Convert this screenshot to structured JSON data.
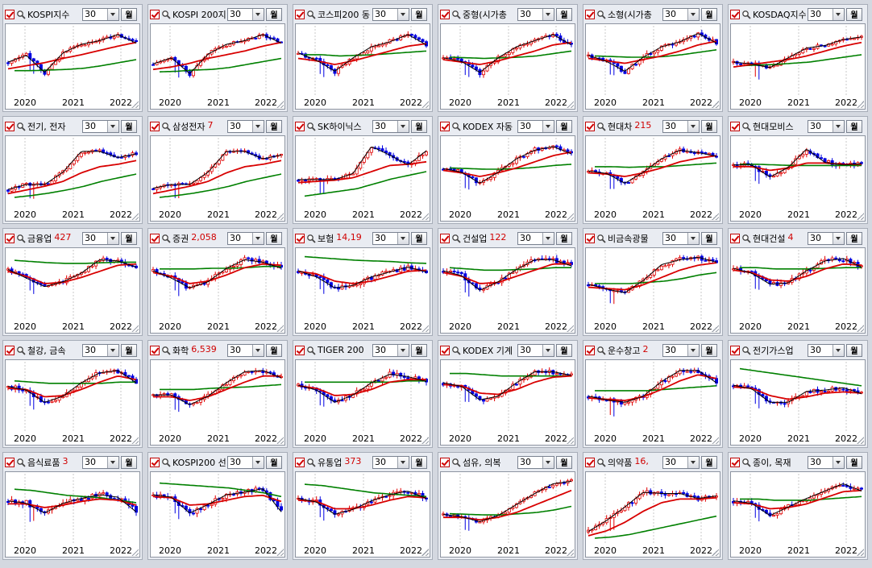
{
  "panels": [
    {
      "name": "KOSPI지수",
      "value": "",
      "period": "30",
      "unit": "월",
      "trend": [
        55,
        42,
        72,
        38,
        26,
        18,
        10,
        22
      ],
      "ma20": [
        65,
        60,
        55,
        48,
        42,
        35,
        28,
        22
      ],
      "ma60": [
        68,
        68,
        67,
        66,
        64,
        60,
        55,
        50
      ],
      "color_order": "rg",
      "volat": 0.6
    },
    {
      "name": "KOSPI 200지",
      "value": "",
      "period": "30",
      "unit": "월",
      "trend": [
        58,
        46,
        74,
        40,
        26,
        18,
        10,
        22
      ],
      "ma20": [
        66,
        62,
        56,
        48,
        42,
        36,
        28,
        22
      ],
      "ma60": [
        70,
        69,
        67,
        66,
        63,
        58,
        53,
        48
      ],
      "color_order": "rg",
      "volat": 0.6
    },
    {
      "name": "코스피200 동",
      "value": "",
      "period": "30",
      "unit": "월",
      "trend": [
        40,
        50,
        70,
        46,
        30,
        20,
        10,
        25
      ],
      "ma20": [
        48,
        52,
        58,
        52,
        44,
        36,
        28,
        24
      ],
      "ma60": [
        42,
        42,
        44,
        43,
        42,
        40,
        38,
        36
      ],
      "color_order": "rg",
      "volat": 0.7
    },
    {
      "name": "중형(시가총",
      "value": "",
      "period": "30",
      "unit": "월",
      "trend": [
        48,
        52,
        72,
        46,
        30,
        18,
        10,
        25
      ],
      "ma20": [
        50,
        54,
        58,
        52,
        44,
        36,
        26,
        22
      ],
      "ma60": [
        46,
        47,
        48,
        47,
        46,
        44,
        40,
        36
      ],
      "color_order": "rg",
      "volat": 0.7
    },
    {
      "name": "소형(시가총",
      "value": "",
      "period": "30",
      "unit": "월",
      "trend": [
        44,
        52,
        70,
        45,
        30,
        20,
        8,
        22
      ],
      "ma20": [
        48,
        52,
        56,
        50,
        44,
        36,
        26,
        20
      ],
      "ma60": [
        44,
        45,
        46,
        46,
        45,
        42,
        38,
        34
      ],
      "color_order": "rg",
      "volat": 0.7
    },
    {
      "name": "KOSDAQ지수",
      "value": "",
      "period": "30",
      "unit": "월",
      "trend": [
        55,
        56,
        64,
        46,
        32,
        26,
        18,
        12
      ],
      "ma20": [
        62,
        58,
        54,
        50,
        44,
        36,
        28,
        22
      ],
      "ma60": [
        60,
        59,
        58,
        56,
        54,
        50,
        46,
        42
      ],
      "color_order": "rg",
      "volat": 0.6
    },
    {
      "name": "전기, 전자",
      "value": "",
      "period": "30",
      "unit": "월",
      "trend": [
        80,
        70,
        72,
        50,
        18,
        16,
        28,
        20
      ],
      "ma20": [
        86,
        80,
        74,
        66,
        52,
        42,
        38,
        32
      ],
      "ma60": [
        92,
        89,
        85,
        80,
        74,
        66,
        60,
        54
      ],
      "color_order": "rg",
      "volat": 0.6
    },
    {
      "name": "삼성전자",
      "value": "7",
      "period": "30",
      "unit": "월",
      "trend": [
        78,
        70,
        72,
        50,
        18,
        16,
        30,
        22
      ],
      "ma20": [
        86,
        80,
        74,
        66,
        52,
        42,
        38,
        32
      ],
      "ma60": [
        92,
        89,
        85,
        80,
        74,
        66,
        60,
        54
      ],
      "color_order": "rg",
      "volat": 0.6
    },
    {
      "name": "SK하이닉스",
      "value": "",
      "period": "30",
      "unit": "월",
      "trend": [
        64,
        62,
        64,
        52,
        10,
        22,
        40,
        15
      ],
      "ma20": [
        68,
        66,
        64,
        60,
        50,
        40,
        38,
        34
      ],
      "ma60": [
        90,
        86,
        82,
        78,
        70,
        62,
        56,
        50
      ],
      "color_order": "rg",
      "volat": 0.8
    },
    {
      "name": "KODEX 자동",
      "value": "",
      "period": "30",
      "unit": "월",
      "trend": [
        46,
        50,
        70,
        50,
        30,
        14,
        10,
        20
      ],
      "ma20": [
        48,
        52,
        58,
        52,
        44,
        34,
        24,
        18
      ],
      "ma60": [
        44,
        45,
        46,
        46,
        45,
        43,
        40,
        38
      ],
      "color_order": "rg",
      "volat": 0.7
    },
    {
      "name": "현대차",
      "value": "215",
      "period": "30",
      "unit": "월",
      "trend": [
        50,
        52,
        70,
        50,
        30,
        14,
        20,
        24
      ],
      "ma20": [
        52,
        54,
        58,
        52,
        44,
        34,
        28,
        24
      ],
      "ma60": [
        42,
        42,
        43,
        42,
        42,
        40,
        38,
        36
      ],
      "color_order": "rg",
      "volat": 0.7
    },
    {
      "name": "현대모비스",
      "value": "",
      "period": "30",
      "unit": "월",
      "trend": [
        40,
        38,
        60,
        42,
        14,
        34,
        40,
        36
      ],
      "ma20": [
        42,
        42,
        48,
        44,
        36,
        36,
        38,
        38
      ],
      "ma60": [
        38,
        38,
        39,
        40,
        40,
        40,
        40,
        40
      ],
      "color_order": "rg",
      "volat": 0.8
    },
    {
      "name": "금융업",
      "value": "427",
      "period": "30",
      "unit": "월",
      "trend": [
        28,
        40,
        56,
        46,
        34,
        10,
        14,
        22
      ],
      "ma20": [
        30,
        38,
        50,
        48,
        40,
        30,
        20,
        18
      ],
      "ma60": [
        12,
        14,
        16,
        17,
        17,
        16,
        15,
        15
      ],
      "color_order": "rg",
      "volat": 0.7
    },
    {
      "name": "증권",
      "value": "2,058",
      "period": "30",
      "unit": "월",
      "trend": [
        30,
        40,
        58,
        46,
        26,
        10,
        16,
        24
      ],
      "ma20": [
        32,
        38,
        50,
        46,
        36,
        24,
        18,
        20
      ],
      "ma60": [
        26,
        26,
        26,
        25,
        25,
        24,
        22,
        22
      ],
      "color_order": "rg",
      "volat": 0.8
    },
    {
      "name": "보험",
      "value": "14,19",
      "period": "30",
      "unit": "월",
      "trend": [
        30,
        38,
        58,
        52,
        40,
        30,
        24,
        30
      ],
      "ma20": [
        30,
        34,
        46,
        50,
        46,
        38,
        30,
        28
      ],
      "ma60": [
        6,
        8,
        10,
        12,
        13,
        14,
        16,
        17
      ],
      "color_order": "rg",
      "volat": 0.8
    },
    {
      "name": "건설업",
      "value": "122",
      "period": "30",
      "unit": "월",
      "trend": [
        30,
        36,
        62,
        46,
        28,
        10,
        12,
        20
      ],
      "ma20": [
        32,
        38,
        50,
        48,
        38,
        28,
        18,
        18
      ],
      "ma60": [
        24,
        26,
        28,
        28,
        27,
        26,
        24,
        24
      ],
      "color_order": "rg",
      "volat": 0.8
    },
    {
      "name": "비금속광물",
      "value": "",
      "period": "30",
      "unit": "월",
      "trend": [
        52,
        58,
        66,
        44,
        20,
        10,
        8,
        14
      ],
      "ma20": [
        56,
        58,
        60,
        52,
        40,
        28,
        20,
        16
      ],
      "ma60": [
        50,
        50,
        50,
        48,
        46,
        42,
        36,
        32
      ],
      "color_order": "rg",
      "volat": 0.7
    },
    {
      "name": "현대건설",
      "value": "4",
      "period": "30",
      "unit": "월",
      "trend": [
        26,
        32,
        52,
        48,
        30,
        12,
        10,
        22
      ],
      "ma20": [
        28,
        32,
        44,
        46,
        38,
        26,
        18,
        20
      ],
      "ma60": [
        24,
        24,
        26,
        26,
        26,
        25,
        24,
        24
      ],
      "color_order": "rg",
      "volat": 0.8
    },
    {
      "name": "철강, 금속",
      "value": "",
      "period": "30",
      "unit": "월",
      "trend": [
        36,
        40,
        62,
        50,
        30,
        12,
        10,
        28
      ],
      "ma20": [
        38,
        40,
        52,
        50,
        40,
        28,
        18,
        24
      ],
      "ma60": [
        26,
        28,
        30,
        30,
        30,
        30,
        28,
        28
      ],
      "color_order": "rg",
      "volat": 0.8
    },
    {
      "name": "화학",
      "value": "6,539",
      "period": "30",
      "unit": "월",
      "trend": [
        50,
        48,
        66,
        50,
        30,
        10,
        10,
        20
      ],
      "ma20": [
        52,
        52,
        58,
        52,
        40,
        28,
        18,
        18
      ],
      "ma60": [
        40,
        40,
        40,
        38,
        37,
        36,
        34,
        32
      ],
      "color_order": "rg",
      "volat": 0.7
    },
    {
      "name": "TIGER 200",
      "value": "",
      "period": "30",
      "unit": "월",
      "trend": [
        34,
        40,
        62,
        48,
        30,
        14,
        20,
        26
      ],
      "ma20": [
        34,
        38,
        50,
        48,
        40,
        28,
        24,
        24
      ],
      "ma60": [
        28,
        28,
        28,
        28,
        28,
        28,
        26,
        26
      ],
      "color_order": "rg",
      "volat": 0.8
    },
    {
      "name": "KODEX 기계",
      "value": "",
      "period": "30",
      "unit": "월",
      "trend": [
        30,
        34,
        58,
        50,
        30,
        10,
        12,
        16
      ],
      "ma20": [
        32,
        34,
        46,
        48,
        40,
        28,
        20,
        18
      ],
      "ma60": [
        14,
        14,
        16,
        18,
        18,
        18,
        18,
        18
      ],
      "color_order": "rg",
      "volat": 0.8
    },
    {
      "name": "운수창고",
      "value": "2",
      "period": "30",
      "unit": "월",
      "trend": [
        52,
        56,
        62,
        50,
        28,
        8,
        10,
        28
      ],
      "ma20": [
        54,
        56,
        58,
        52,
        40,
        26,
        16,
        22
      ],
      "ma60": [
        42,
        42,
        42,
        42,
        40,
        38,
        36,
        34
      ],
      "color_order": "rg",
      "volat": 0.8
    },
    {
      "name": "전기가스업",
      "value": "",
      "period": "30",
      "unit": "월",
      "trend": [
        34,
        38,
        62,
        60,
        44,
        40,
        38,
        46
      ],
      "ma20": [
        36,
        38,
        50,
        56,
        52,
        46,
        44,
        46
      ],
      "ma60": [
        6,
        10,
        14,
        18,
        22,
        26,
        30,
        34
      ],
      "color_order": "rg",
      "volat": 0.8
    },
    {
      "name": "음식료품",
      "value": "3",
      "period": "30",
      "unit": "월",
      "trend": [
        40,
        42,
        60,
        42,
        36,
        28,
        34,
        56
      ],
      "ma20": [
        44,
        44,
        50,
        46,
        40,
        36,
        38,
        46
      ],
      "ma60": [
        20,
        22,
        26,
        30,
        32,
        34,
        38,
        42
      ],
      "color_order": "rg",
      "volat": 0.9
    },
    {
      "name": "KOSPI200 선",
      "value": "",
      "period": "30",
      "unit": "월",
      "trend": [
        30,
        32,
        60,
        44,
        30,
        24,
        20,
        56
      ],
      "ma20": [
        32,
        34,
        46,
        44,
        38,
        32,
        30,
        40
      ],
      "ma60": [
        10,
        12,
        14,
        16,
        18,
        22,
        26,
        32
      ],
      "color_order": "rg",
      "volat": 0.9
    },
    {
      "name": "유통업",
      "value": "373",
      "period": "30",
      "unit": "월",
      "trend": [
        36,
        40,
        62,
        52,
        40,
        28,
        24,
        34
      ],
      "ma20": [
        38,
        40,
        52,
        52,
        46,
        38,
        32,
        34
      ],
      "ma60": [
        12,
        14,
        18,
        22,
        26,
        28,
        30,
        32
      ],
      "color_order": "rg",
      "volat": 0.8
    },
    {
      "name": "섬유, 의복",
      "value": "",
      "period": "30",
      "unit": "월",
      "trend": [
        62,
        64,
        74,
        62,
        46,
        26,
        12,
        6
      ],
      "ma20": [
        66,
        66,
        70,
        66,
        58,
        46,
        34,
        22
      ],
      "ma60": [
        60,
        61,
        62,
        62,
        60,
        58,
        54,
        48
      ],
      "color_order": "rg",
      "volat": 0.6
    },
    {
      "name": "의약품",
      "value": "16,",
      "period": "30",
      "unit": "월",
      "trend": [
        90,
        70,
        50,
        24,
        28,
        26,
        36,
        30
      ],
      "ma20": [
        96,
        88,
        74,
        56,
        42,
        36,
        36,
        34
      ],
      "ma60": [
        100,
        98,
        94,
        88,
        82,
        76,
        70,
        64
      ],
      "color_order": "rg",
      "volat": 0.8
    },
    {
      "name": "종이, 목재",
      "value": "",
      "period": "30",
      "unit": "월",
      "trend": [
        40,
        42,
        64,
        48,
        36,
        22,
        12,
        22
      ],
      "ma20": [
        42,
        44,
        52,
        50,
        44,
        34,
        24,
        22
      ],
      "ma60": [
        36,
        36,
        38,
        38,
        38,
        36,
        34,
        32
      ],
      "color_order": "rg",
      "volat": 0.8
    }
  ],
  "xaxis": [
    "2020",
    "2021",
    "2022"
  ],
  "colors": {
    "up": "#e00000",
    "down": "#0000e0",
    "ma_short": "#000000",
    "ma_mid": "#d80000",
    "ma_long": "#008000"
  }
}
